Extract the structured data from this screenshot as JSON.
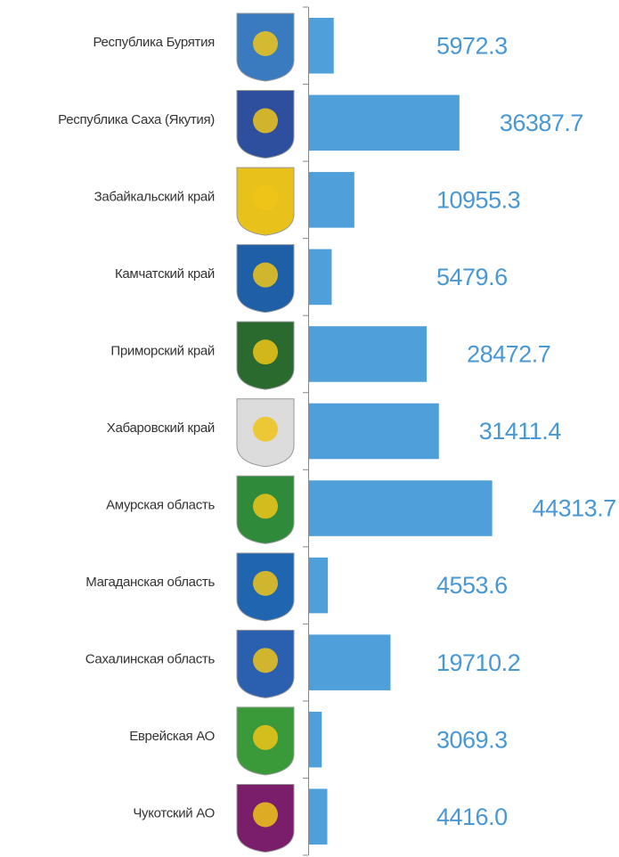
{
  "chart_data": {
    "type": "bar",
    "orientation": "horizontal",
    "categories": [
      "Республика Бурятия",
      "Республика Саха (Якутия)",
      "Забайкальский край",
      "Камчатский край",
      "Приморский край",
      "Хабаровский край",
      "Амурская область",
      "Магаданская область",
      "Сахалинская область",
      "Еврейская АО",
      "Чукотский АО"
    ],
    "values": [
      5972.3,
      36387.7,
      10955.3,
      5479.6,
      28472.7,
      31411.4,
      44313.7,
      4553.6,
      19710.2,
      3069.3,
      4416.0
    ],
    "value_labels": [
      "5972.3",
      "36387.7",
      "10955.3",
      "5479.6",
      "28472.7",
      "31411.4",
      "44313.7",
      "4553.6",
      "19710.2",
      "3069.3",
      "4416.0"
    ],
    "color": "#4f9fda",
    "label_color": "#4a98d3",
    "xlim": [
      0,
      75000
    ]
  }
}
